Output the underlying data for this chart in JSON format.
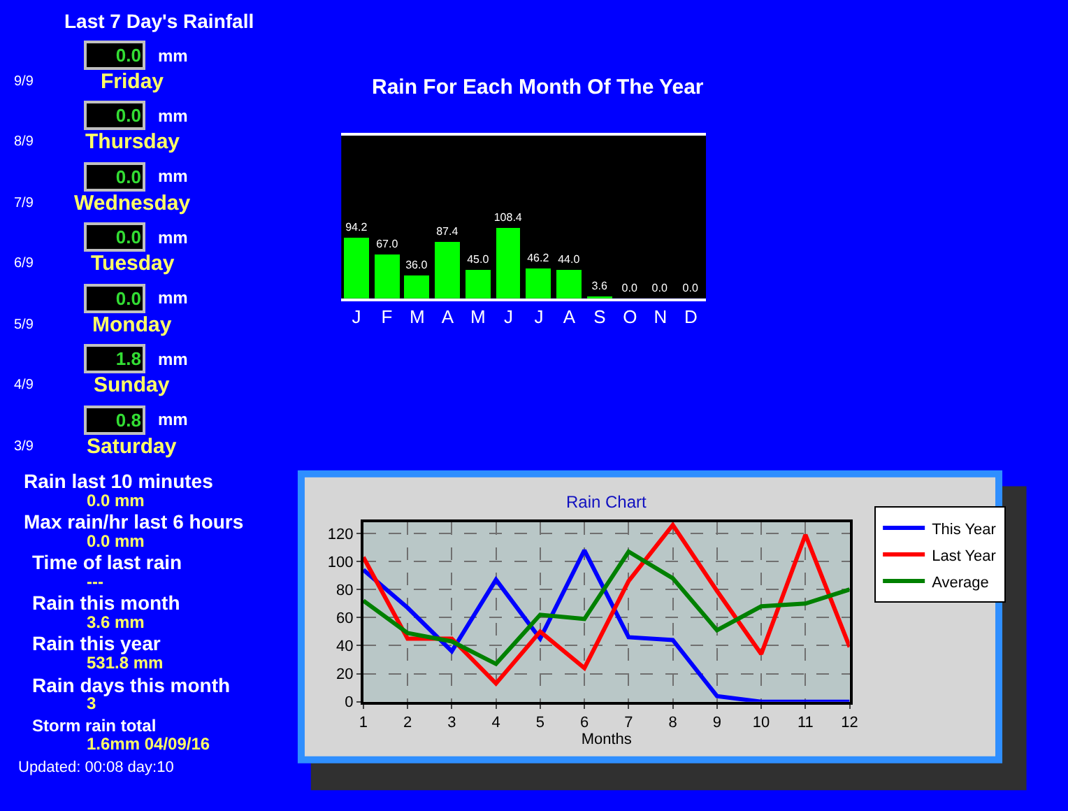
{
  "chart_data": [
    {
      "type": "other",
      "title": "Last 7 Day's Rainfall",
      "annotations": [
        "9/9",
        "0.0",
        "mm",
        "Friday",
        "8/9",
        "0.0",
        "mm",
        "Thursday",
        "7/9",
        "0.0",
        "mm",
        "Wednesday",
        "6/9",
        "0.0",
        "mm",
        "Tuesday",
        "5/9",
        "0.0",
        "mm",
        "Monday",
        "4/9",
        "1.8",
        "mm",
        "Sunday",
        "3/9",
        "0.8",
        "mm",
        "Saturday"
      ]
    },
    {
      "type": "other",
      "annotations": [
        "Rain last 10 minutes",
        "0.0 mm",
        "Max rain/hr last 6 hours",
        "0.0 mm",
        "Time of last rain",
        "---",
        "Rain this month",
        "3.6 mm",
        "Rain this year",
        "531.8 mm",
        "Rain days this month",
        "3",
        "Storm rain total",
        "1.6mm 04/09/16",
        "Updated: 00:08 day:10"
      ]
    },
    {
      "type": "bar",
      "title": "Rain For Each Month Of The Year",
      "categories": [
        "J",
        "F",
        "M",
        "A",
        "M",
        "J",
        "J",
        "A",
        "S",
        "O",
        "N",
        "D"
      ],
      "values": [
        94.2,
        67.0,
        36.0,
        87.4,
        45.0,
        108.4,
        46.2,
        44.0,
        3.6,
        0.0,
        0.0,
        0.0
      ],
      "value_labels": [
        "94.2",
        "67.0",
        "36.0",
        "87.4",
        "45.0",
        "108.4",
        "46.2",
        "44.0",
        "3.6",
        "0.0",
        "0.0",
        "0.0"
      ],
      "color": "#00ff00",
      "ylim": [
        0,
        250
      ],
      "tick_labels": "x",
      "grid": false,
      "legend": false
    },
    {
      "type": "line",
      "title": "Rain Chart",
      "xlabel": "Months",
      "x": [
        1,
        2,
        3,
        4,
        5,
        6,
        7,
        8,
        9,
        10,
        11,
        12
      ],
      "series": [
        {
          "name": "This Year",
          "color": "#0000ff",
          "values": [
            94,
            67,
            36,
            87,
            45,
            108,
            46,
            44,
            4,
            0,
            0,
            0
          ]
        },
        {
          "name": "Last Year",
          "color": "#ff0000",
          "values": [
            103,
            45,
            45,
            13,
            50,
            24,
            86,
            126,
            79,
            34,
            119,
            39
          ]
        },
        {
          "name": "Average",
          "color": "#008000",
          "values": [
            72,
            49,
            43,
            27,
            62,
            59,
            107,
            88,
            51,
            68,
            70,
            80
          ]
        }
      ],
      "xlim": [
        1,
        12
      ],
      "xticks": [
        1,
        2,
        3,
        4,
        5,
        6,
        7,
        8,
        9,
        10,
        11,
        12
      ],
      "ylim": [
        0,
        128
      ],
      "yticks": [
        0,
        20,
        40,
        60,
        80,
        100,
        120
      ],
      "grid": true,
      "legend": "top right",
      "marker": "none",
      "line_style": "solid"
    }
  ]
}
